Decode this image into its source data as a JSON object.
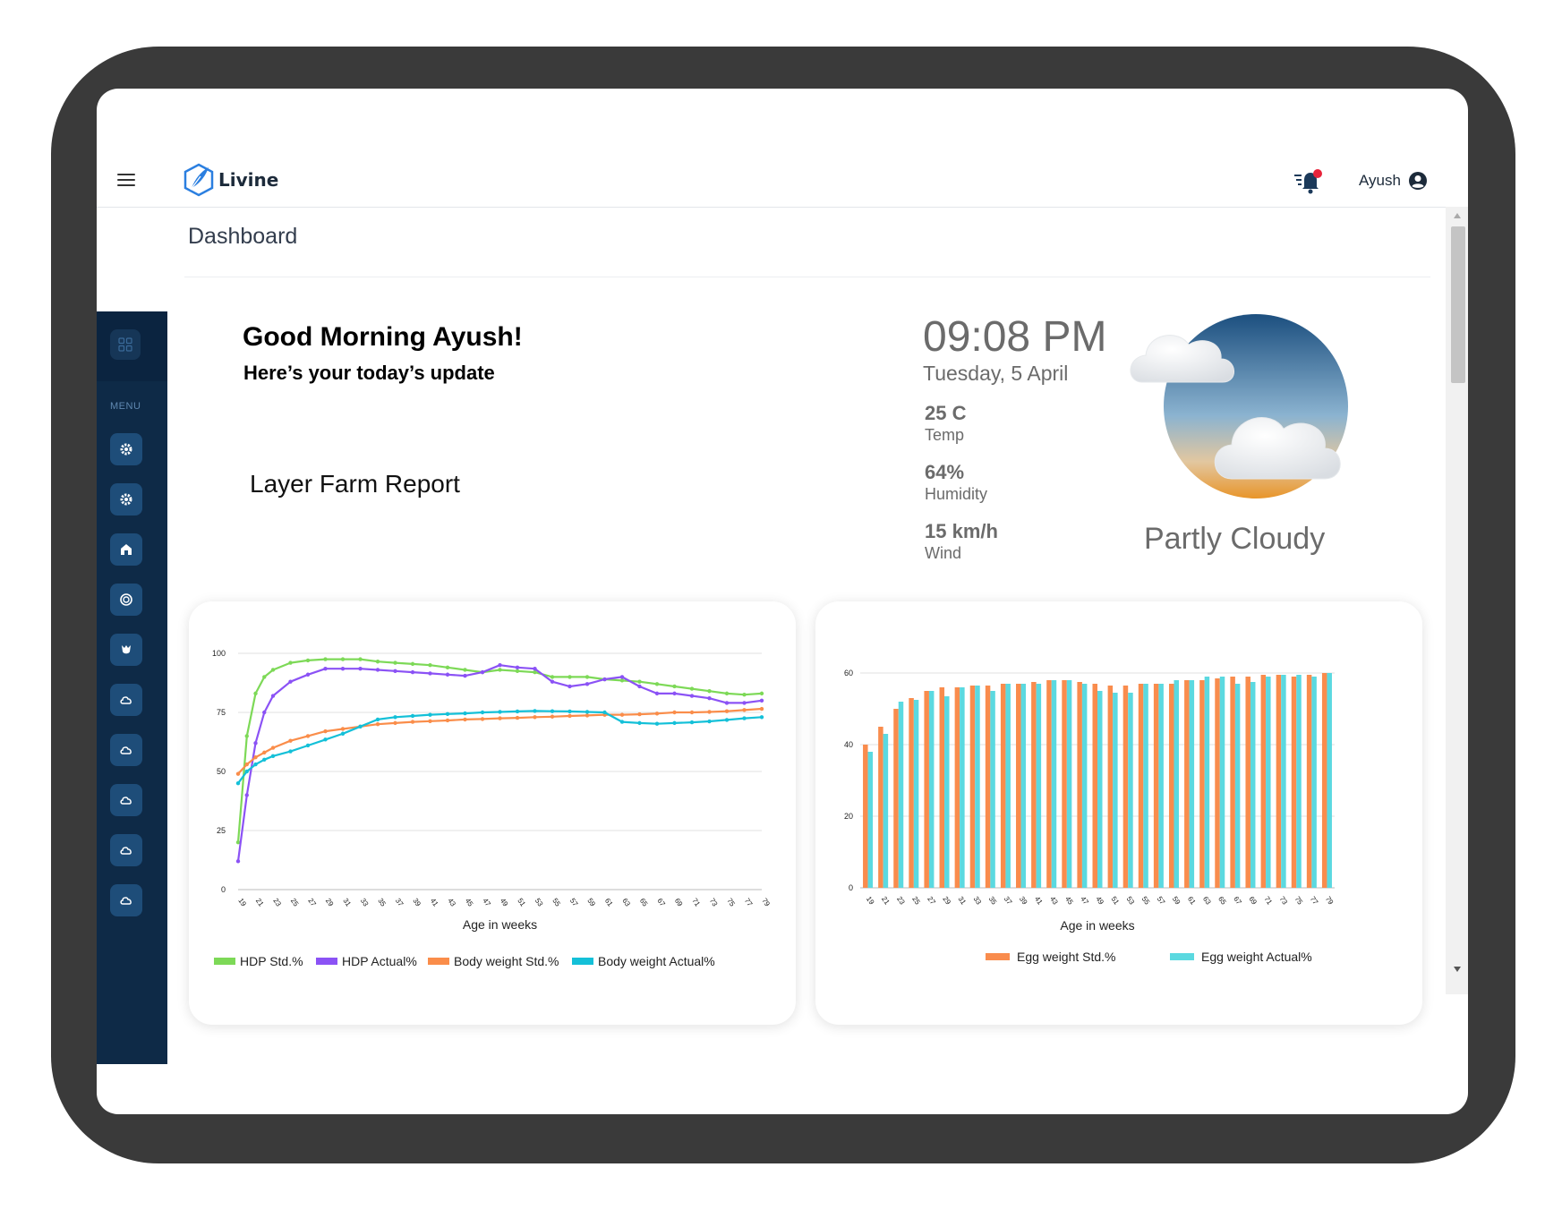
{
  "app": {
    "name": "Livine"
  },
  "header": {
    "user_name": "Ayush"
  },
  "sidebar": {
    "menu_label": "MENU",
    "items": [
      {
        "icon": "gear-icon"
      },
      {
        "icon": "gear-icon"
      },
      {
        "icon": "barn-icon"
      },
      {
        "icon": "egg-icon"
      },
      {
        "icon": "hen-icon"
      },
      {
        "icon": "cloud-icon"
      },
      {
        "icon": "cloud-icon"
      },
      {
        "icon": "cloud-icon"
      },
      {
        "icon": "cloud-icon"
      },
      {
        "icon": "cloud-icon"
      }
    ]
  },
  "page": {
    "title": "Dashboard"
  },
  "greeting": {
    "headline": "Good Morning Ayush!",
    "subline": "Here’s your today’s update",
    "report": "Layer Farm Report"
  },
  "weather": {
    "time": "09:08 PM",
    "date": "Tuesday, 5 April",
    "temp_value": "25 C",
    "temp_label": "Temp",
    "humidity_value": "64%",
    "humidity_label": "Humidity",
    "wind_value": "15 km/h",
    "wind_label": "Wind",
    "condition": "Partly Cloudy"
  },
  "colors": {
    "hdp_std": "#7dd957",
    "hdp_actual": "#8b52f5",
    "bw_std": "#fa8d4a",
    "bw_actual": "#14c0d8",
    "egg_std": "#f98c4d",
    "egg_actual": "#5bd9e0",
    "sidebar": "#0e2a47"
  },
  "chart_data": [
    {
      "type": "line",
      "xlabel": "Age in weeks",
      "ylabel": "",
      "ylim": [
        0,
        100
      ],
      "yticks": [
        0,
        25,
        50,
        75,
        100
      ],
      "x": [
        19,
        20,
        21,
        22,
        23,
        25,
        27,
        29,
        31,
        33,
        35,
        37,
        39,
        41,
        43,
        45,
        47,
        49,
        51,
        53,
        55,
        57,
        59,
        61,
        63,
        65,
        67,
        69,
        71,
        73,
        75,
        77,
        79
      ],
      "xtick_labels": [
        "19",
        "21",
        "23",
        "25",
        "27",
        "29",
        "31",
        "33",
        "35",
        "37",
        "39",
        "41",
        "43",
        "45",
        "47",
        "49",
        "51",
        "53",
        "55",
        "57",
        "59",
        "61",
        "63",
        "65",
        "67",
        "69",
        "71",
        "73",
        "75",
        "77",
        "79"
      ],
      "legend": "bottom",
      "series": [
        {
          "name": "HDP Std.%",
          "values": [
            20,
            65,
            83,
            90,
            93,
            96,
            97,
            97.5,
            97.5,
            97.5,
            96.5,
            96,
            95.5,
            95,
            94,
            93,
            92,
            93,
            92.5,
            92,
            90,
            90,
            90,
            89,
            88.5,
            88,
            87,
            86,
            85,
            84,
            83,
            82.5,
            83
          ]
        },
        {
          "name": "HDP Actual%",
          "values": [
            12,
            40,
            62,
            75,
            82,
            88,
            91,
            93.5,
            93.5,
            93.5,
            93,
            92.5,
            92,
            91.5,
            91,
            90.5,
            92,
            95,
            94,
            93.5,
            88,
            86,
            87,
            89,
            90,
            86,
            83,
            83,
            82,
            81,
            79,
            79,
            80
          ]
        },
        {
          "name": "Body weight Std.%",
          "values": [
            49,
            53,
            56,
            58,
            60,
            63,
            65,
            67,
            68,
            69,
            70,
            70.5,
            71,
            71.3,
            71.6,
            72,
            72.2,
            72.5,
            72.7,
            73,
            73.2,
            73.5,
            73.7,
            74,
            74,
            74.2,
            74.5,
            75,
            75,
            75.2,
            75.5,
            76,
            76.5
          ]
        },
        {
          "name": "Body weight Actual%",
          "values": [
            45,
            50,
            53,
            55,
            56.5,
            58.5,
            61,
            63.5,
            66,
            69,
            72,
            73,
            73.5,
            74,
            74.3,
            74.6,
            75,
            75.2,
            75.4,
            75.6,
            75.5,
            75.4,
            75.2,
            75,
            71,
            70.5,
            70.2,
            70.5,
            70.8,
            71.2,
            71.8,
            72.5,
            73
          ]
        }
      ]
    },
    {
      "type": "bar",
      "xlabel": "Age in weeks",
      "ylabel": "",
      "ylim": [
        0,
        60
      ],
      "yticks": [
        0,
        20,
        40,
        60
      ],
      "categories": [
        "19",
        "21",
        "23",
        "25",
        "27",
        "29",
        "31",
        "33",
        "35",
        "37",
        "39",
        "41",
        "43",
        "45",
        "47",
        "49",
        "51",
        "53",
        "55",
        "57",
        "59",
        "61",
        "63",
        "65",
        "67",
        "69",
        "71",
        "73",
        "75",
        "77",
        "79"
      ],
      "legend": "bottom",
      "series": [
        {
          "name": "Egg weight Std.%",
          "values": [
            40,
            45,
            50,
            53,
            55,
            56,
            56,
            56.5,
            56.5,
            57,
            57,
            57.5,
            58,
            58,
            57.5,
            57,
            56.5,
            56.5,
            57,
            57,
            57,
            58,
            58,
            58.5,
            59,
            59,
            59.5,
            59.5,
            59,
            59.5,
            60
          ]
        },
        {
          "name": "Egg weight Actual%",
          "values": [
            38,
            43,
            52,
            52.5,
            55,
            53.5,
            56,
            56.5,
            55,
            57,
            57,
            57,
            58,
            58,
            57,
            55,
            54.5,
            54.5,
            57,
            57,
            58,
            58,
            59,
            59,
            57,
            57.5,
            59,
            59.5,
            59.5,
            59,
            60
          ]
        }
      ]
    }
  ]
}
